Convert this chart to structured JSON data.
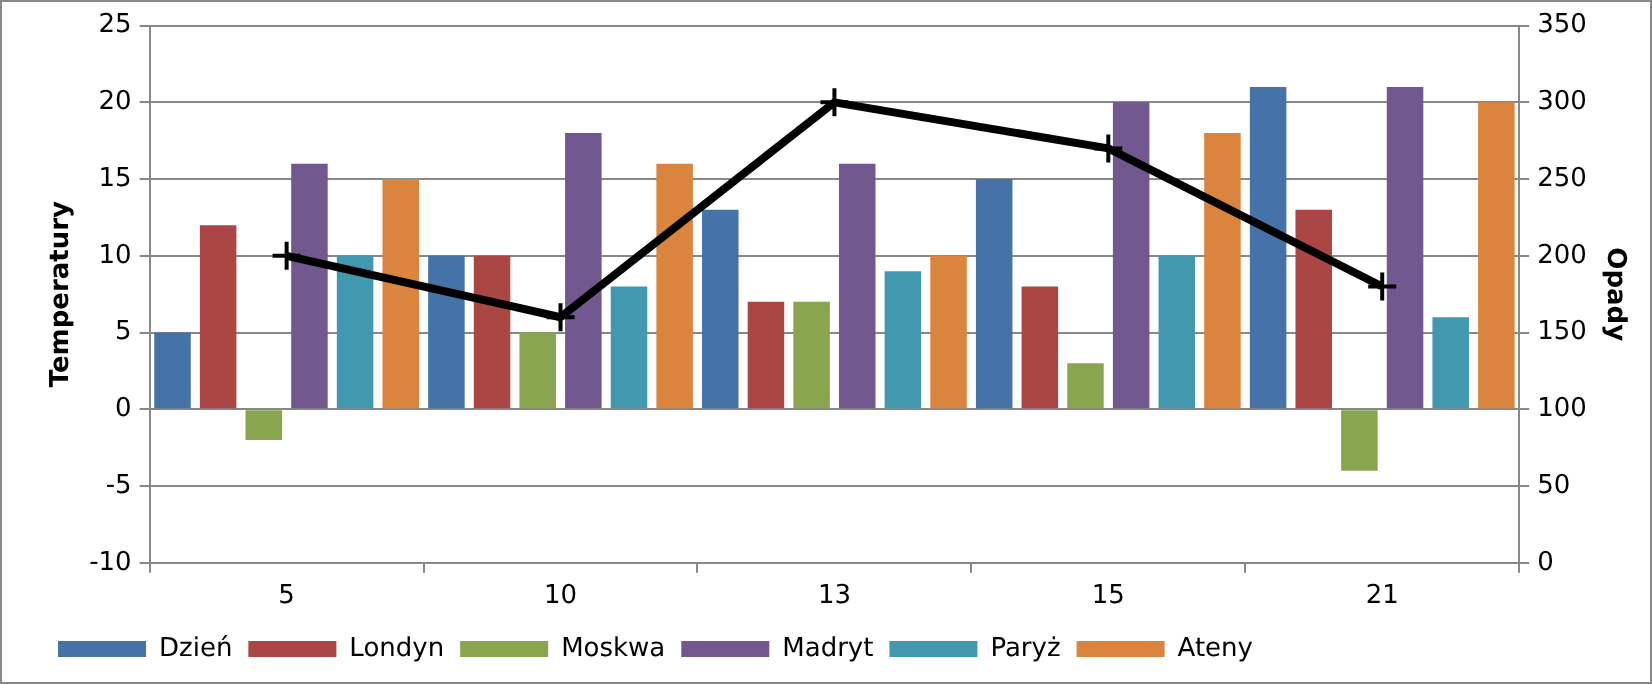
{
  "chart_data": {
    "type": "bar",
    "ylabel": "Temperatury",
    "y2label": "Opady",
    "categories": [
      "5",
      "10",
      "13",
      "15",
      "21"
    ],
    "series": [
      {
        "name": "Dzień",
        "color": "#4572a7",
        "values": [
          5,
          10,
          13,
          15,
          21
        ]
      },
      {
        "name": "Londyn",
        "color": "#aa4643",
        "values": [
          12,
          10,
          7,
          8,
          13
        ]
      },
      {
        "name": "Moskwa",
        "color": "#89a54e",
        "values": [
          -2,
          5,
          7,
          3,
          -4
        ]
      },
      {
        "name": "Madryt",
        "color": "#71588f",
        "values": [
          16,
          18,
          16,
          20,
          21
        ]
      },
      {
        "name": "Paryż",
        "color": "#4198af",
        "values": [
          10,
          8,
          9,
          10,
          6
        ]
      },
      {
        "name": "Ateny",
        "color": "#db843d",
        "values": [
          15,
          16,
          10,
          18,
          20
        ]
      },
      {
        "type": "line",
        "axis": "y2",
        "color": "#000000",
        "values": [
          200,
          160,
          300,
          270,
          180
        ]
      }
    ],
    "ylim": [
      -10,
      25
    ],
    "yticks": [
      -10,
      -5,
      0,
      5,
      10,
      15,
      20,
      25
    ],
    "y2lim": [
      0,
      350
    ],
    "y2ticks": [
      0,
      50,
      100,
      150,
      200,
      250,
      300,
      350
    ],
    "grid": "y",
    "legend": "bottom left",
    "marker": "cross"
  }
}
